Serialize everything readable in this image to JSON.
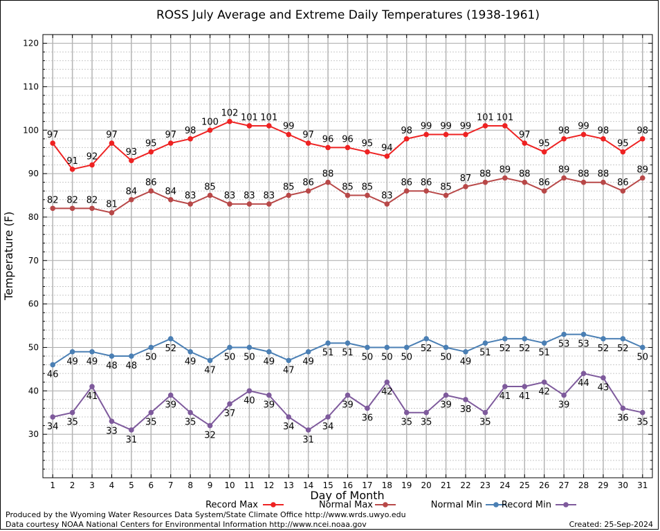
{
  "chart_data": {
    "type": "line",
    "title": "ROSS July Average and Extreme Daily Temperatures (1938-1961)",
    "xlabel": "Day of Month",
    "ylabel": "Temperature (F)",
    "xlim": [
      0.5,
      31.5
    ],
    "ylim": [
      20,
      122
    ],
    "yticks": [
      30,
      40,
      50,
      60,
      70,
      80,
      90,
      100,
      110,
      120
    ],
    "x": [
      1,
      2,
      3,
      4,
      5,
      6,
      7,
      8,
      9,
      10,
      11,
      12,
      13,
      14,
      15,
      16,
      17,
      18,
      19,
      20,
      21,
      22,
      23,
      24,
      25,
      26,
      27,
      28,
      29,
      30,
      31
    ],
    "grid": true,
    "legend_position": "bottom",
    "series": [
      {
        "name": "Record Max",
        "color": "#ee2222",
        "label_position": "above",
        "values": [
          97,
          91,
          92,
          97,
          93,
          95,
          97,
          98,
          100,
          102,
          101,
          101,
          99,
          97,
          96,
          96,
          95,
          94,
          98,
          99,
          99,
          99,
          101,
          101,
          97,
          95,
          98,
          99,
          98,
          95,
          98
        ]
      },
      {
        "name": "Normal Max",
        "color": "#b84848",
        "label_position": "above",
        "values": [
          82,
          82,
          82,
          81,
          84,
          86,
          84,
          83,
          85,
          83,
          83,
          83,
          85,
          86,
          88,
          85,
          85,
          83,
          86,
          86,
          85,
          87,
          88,
          89,
          88,
          86,
          89,
          88,
          88,
          86,
          89
        ]
      },
      {
        "name": "Normal Min",
        "color": "#4a7fb4",
        "label_position": "below",
        "values": [
          46,
          49,
          49,
          48,
          48,
          50,
          52,
          49,
          47,
          50,
          50,
          49,
          47,
          49,
          51,
          51,
          50,
          50,
          50,
          52,
          50,
          49,
          51,
          52,
          52,
          51,
          53,
          53,
          52,
          52,
          50
        ]
      },
      {
        "name": "Record Min",
        "color": "#7e5a9c",
        "label_position": "below",
        "values": [
          34,
          35,
          41,
          33,
          31,
          35,
          39,
          35,
          32,
          37,
          40,
          39,
          34,
          31,
          34,
          39,
          36,
          42,
          35,
          35,
          39,
          38,
          35,
          41,
          41,
          42,
          39,
          44,
          43,
          36,
          35
        ]
      }
    ]
  },
  "footer": {
    "left_line1": "Produced by the Wyoming Water Resources Data System/State Climate Office http://www.wrds.uwyo.edu",
    "left_line2": "Data courtesy NOAA National Centers for Environmental Information http://www.ncei.noaa.gov",
    "created": "Created:  25-Sep-2024"
  }
}
